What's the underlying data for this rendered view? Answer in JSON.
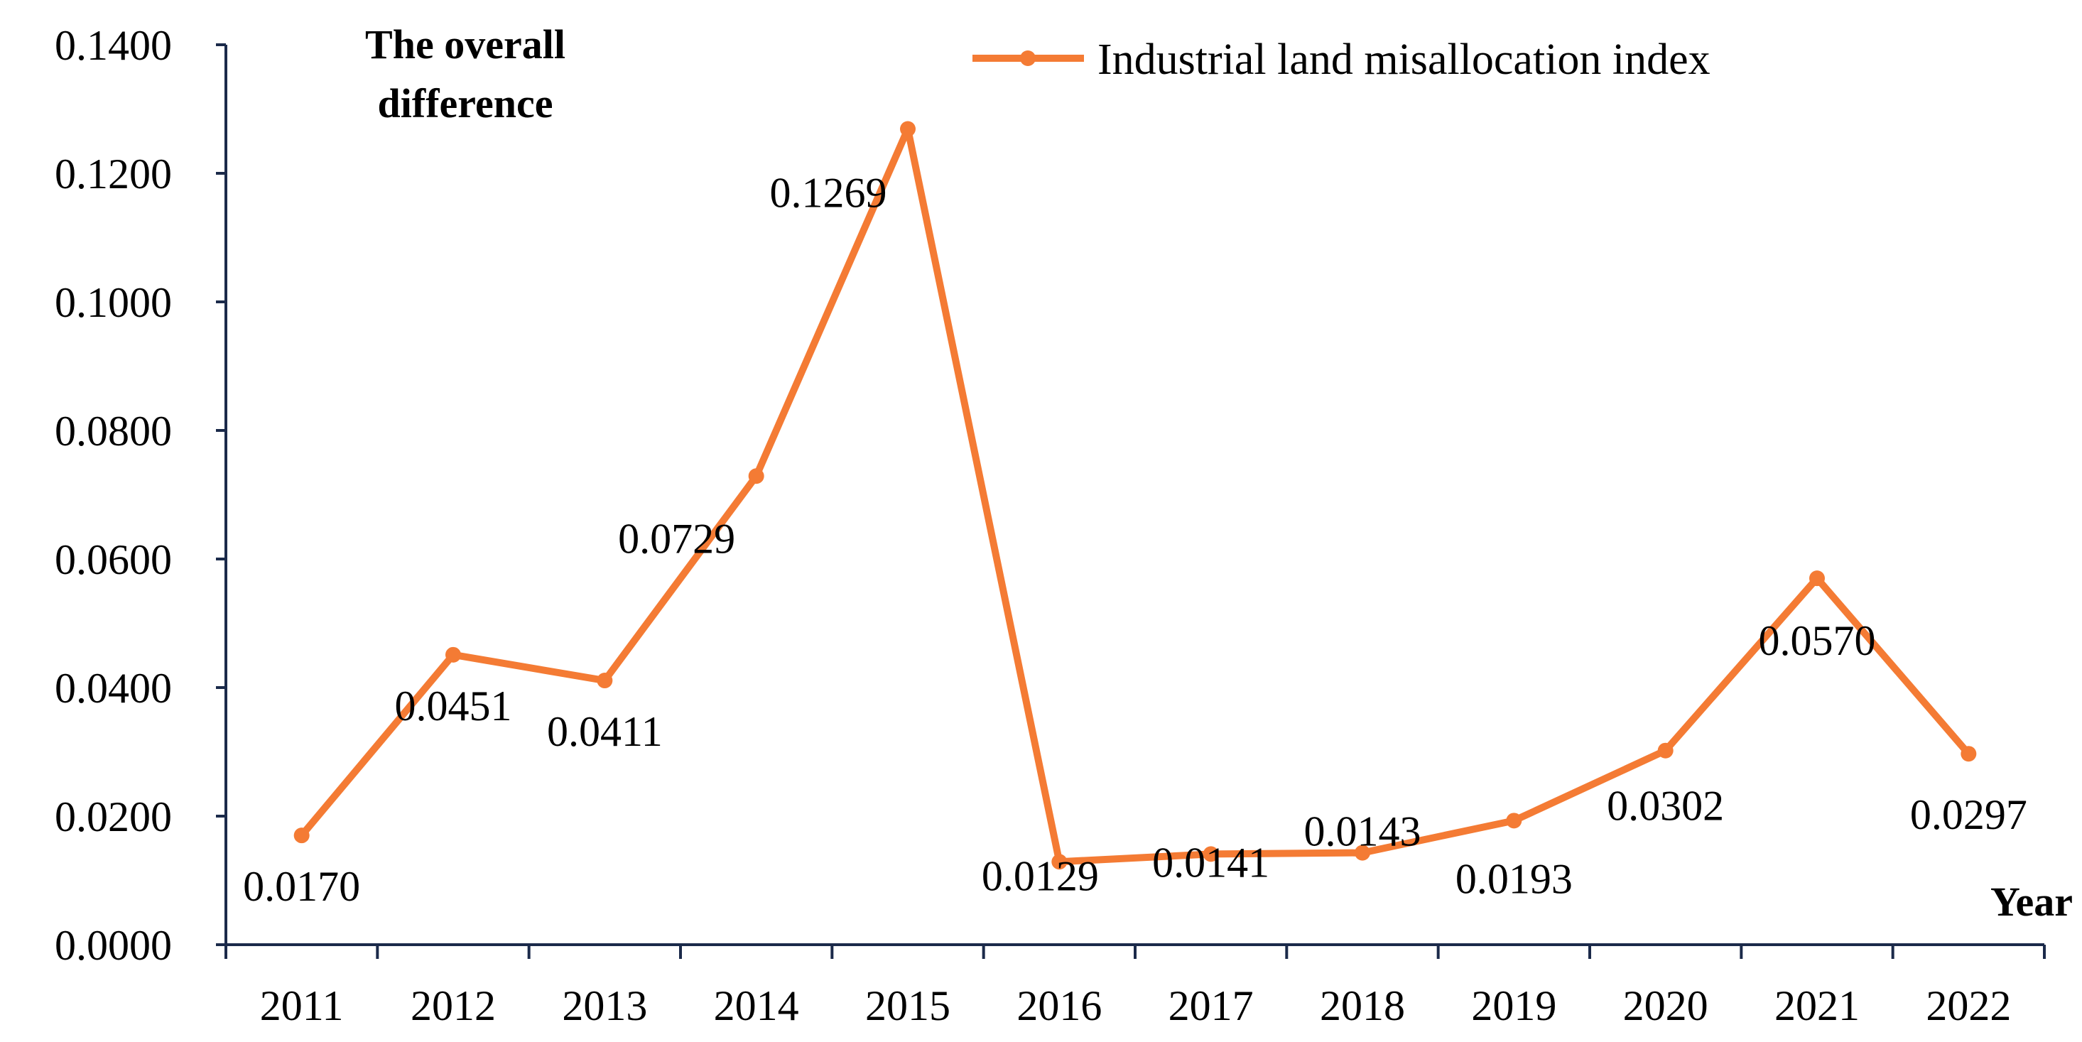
{
  "chart_data": {
    "type": "line",
    "title": "",
    "ylabel": "The overall difference",
    "xlabel": "Year",
    "categories": [
      "2011",
      "2012",
      "2013",
      "2014",
      "2015",
      "2016",
      "2017",
      "2018",
      "2019",
      "2020",
      "2021",
      "2022"
    ],
    "series": [
      {
        "name": "Industrial land misallocation index",
        "values": [
          0.017,
          0.0451,
          0.0411,
          0.0729,
          0.1269,
          0.0129,
          0.0141,
          0.0143,
          0.0193,
          0.0302,
          0.057,
          0.0297
        ],
        "labels": [
          "0.0170",
          "0.0451",
          "0.0411",
          "0.0729",
          "0.1269",
          "0.0129",
          "0.0141",
          "0.0143",
          "0.0193",
          "0.0302",
          "0.0570",
          "0.0297"
        ],
        "color": "#F47B34"
      }
    ],
    "yticks": [
      "0.0000",
      "0.0200",
      "0.0400",
      "0.0600",
      "0.0800",
      "0.1000",
      "0.1200",
      "0.1400"
    ],
    "ylim": [
      0,
      0.14
    ],
    "grid": false,
    "legend_position": "top-right",
    "axis_color": "#1B2A4A"
  }
}
